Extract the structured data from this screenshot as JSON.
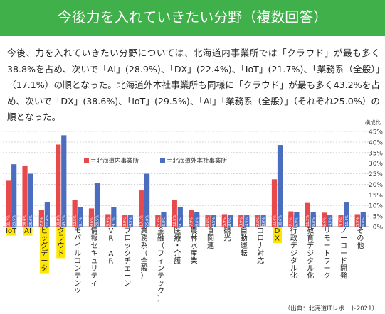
{
  "header": {
    "title": "今後力を入れていきたい分野（複数回答）",
    "banner_color": "#3fb04a"
  },
  "description": "今後、力を入れていきたい分野については、北海道内事業所では「クラウド」が最も多く38.8%を占め、次いで「AI」(28.9%)、「DX」(22.4%)、「IoT」(21.7%)、「業務系（全般）」（17.1%）の順となった。北海道外本社事業所も同様に「クラウド」が最も多く43.2%を占め、次いで「DX」(38.6%)、「IoT」(29.5%)、「AI」「業務系（全般）」（それぞれ25.0%）の順となった。",
  "source": "（出典：北海道ITレポート2021）",
  "chart_data": {
    "type": "bar",
    "ylabel": "構成比",
    "ylim": [
      0,
      45
    ],
    "yticks": [
      "0%",
      "5%",
      "10%",
      "15%",
      "20%",
      "25%",
      "30%",
      "35%",
      "40%",
      "45%"
    ],
    "grid": true,
    "legend_position": "top-left",
    "categories": [
      "IoT",
      "AI",
      "ビッグデータ",
      "クラウド",
      "モバイルコンテンツ",
      "情報セキュリティ",
      "VR AR",
      "ブロックチェーン",
      "業務系（全般）",
      "金融（フィンテック）",
      "医療・介護",
      "農林水産業",
      "食関連",
      "観光",
      "自動運転",
      "コロナ対応",
      "DX",
      "行政デジタル化",
      "教育デジタル化",
      "リモートワーク",
      "ノーコード開発",
      "その他"
    ],
    "highlighted_categories": [
      "IoT",
      "AI",
      "ビッグデータ",
      "クラウド",
      "DX"
    ],
    "highlight_color": "#ffe600",
    "series": [
      {
        "name": "＝北海道内事業所",
        "color": "#e8494b",
        "values": [
          21.7,
          28.9,
          7.9,
          38.8,
          12.5,
          8.6,
          5.9,
          3.9,
          17.1,
          5.3,
          12.5,
          7.9,
          4.6,
          5.9,
          3.9,
          2.6,
          22.4,
          7.2,
          11.2,
          6.6,
          3.3,
          5.9
        ],
        "labels": [
          "21.7%",
          "28.9%",
          "7.9%",
          "38.8%",
          "12.5%",
          "8.6%",
          "5.9%",
          "3.9%",
          "17.1%",
          "5.3%",
          "12.5%",
          "7.9%",
          "4.6%",
          "5.9%",
          "3.9%",
          "2.6%",
          "22.4%",
          "7.2%",
          "11.2%",
          "6.6%",
          "3.3%",
          "5.9%"
        ]
      },
      {
        "name": "＝北海道外本社事業所",
        "color": "#4a6dbf",
        "values": [
          29.5,
          25.0,
          11.4,
          43.2,
          9.1,
          20.5,
          9.1,
          4.5,
          25.0,
          6.8,
          9.1,
          6.8,
          4.5,
          4.5,
          4.5,
          0.0,
          38.6,
          6.8,
          6.8,
          4.5,
          11.4,
          6.8
        ],
        "labels": [
          "29.5%",
          "25.0%",
          "11.4%",
          "43.2%",
          "9.1%",
          "20.5%",
          "9.1%",
          "4.5%",
          "25.0%",
          "6.8%",
          "9.1%",
          "6.8%",
          "4.5%",
          "4.5%",
          "4.5%",
          "0.0%",
          "38.6%",
          "6.8%",
          "6.8%",
          "4.5%",
          "11.4%",
          "6.8%"
        ]
      }
    ]
  }
}
